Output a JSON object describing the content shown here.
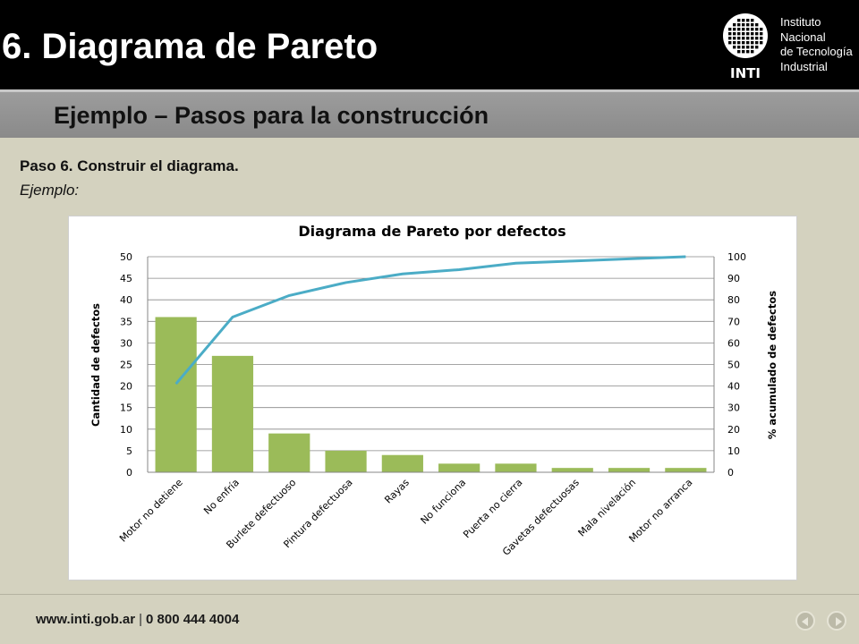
{
  "header": {
    "title": "6. Diagrama de Pareto",
    "logo": {
      "line1": "Instituto",
      "line2": "Nacional",
      "line3": "de Tecnología",
      "line4": "Industrial",
      "acronym": "INTI"
    }
  },
  "subtitle": "Ejemplo – Pasos para la construcción",
  "step_text": "Paso 6. Construir el diagrama.",
  "example_text": "Ejemplo:",
  "footer": {
    "url": "www.inti.gob.ar",
    "separator": "|",
    "phone": "0 800 444 4004"
  },
  "colors": {
    "bar": "#9bbb59",
    "line": "#4bacc6"
  },
  "chart_data": {
    "type": "bar",
    "title": "Diagrama de Pareto por defectos",
    "ylabel": "Cantidad de defectos",
    "y2label": "% acumulado de defectos",
    "ylim": [
      0,
      50
    ],
    "y2lim": [
      0,
      100
    ],
    "yticks": [
      "0",
      "5",
      "10",
      "15",
      "20",
      "25",
      "30",
      "35",
      "40",
      "45",
      "50"
    ],
    "y2ticks": [
      "0",
      "10",
      "20",
      "30",
      "40",
      "50",
      "60",
      "70",
      "80",
      "90",
      "100"
    ],
    "categories": [
      "Motor no detiene",
      "No enfría",
      "Burlete defectuoso",
      "Pintura defectuosa",
      "Rayas",
      "No funciona",
      "Puerta no cierra",
      "Gavetas defectuosas",
      "Mala nivelación",
      "Motor no arranca"
    ],
    "series": [
      {
        "name": "Cantidad de defectos",
        "type": "bar",
        "axis": "left",
        "values": [
          36,
          27,
          9,
          5,
          4,
          2,
          2,
          1,
          1,
          1
        ]
      },
      {
        "name": "% acumulado de defectos",
        "type": "line",
        "axis": "right",
        "values": [
          41,
          72,
          82,
          88,
          92,
          94,
          97,
          98,
          99,
          100
        ]
      }
    ],
    "grid": true
  }
}
